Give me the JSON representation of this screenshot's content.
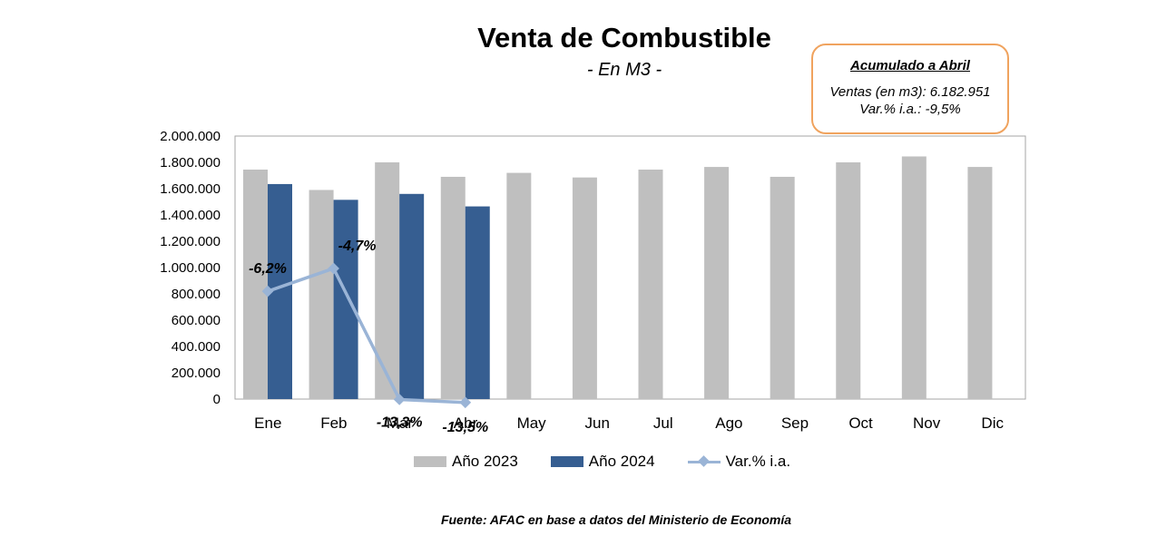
{
  "chart_data": {
    "type": "bar",
    "title": "Venta de Combustible",
    "subtitle": "- En M3 -",
    "categories": [
      "Ene",
      "Feb",
      "Mar",
      "Abr",
      "May",
      "Jun",
      "Jul",
      "Ago",
      "Sep",
      "Oct",
      "Nov",
      "Dic"
    ],
    "series": [
      {
        "name": "Año 2023",
        "type": "bar",
        "color": "#bfbfbf",
        "values": [
          1745000,
          1590000,
          1800000,
          1690000,
          1720000,
          1685000,
          1745000,
          1765000,
          1690000,
          1800000,
          1845000,
          1765000
        ]
      },
      {
        "name": "Año 2024",
        "type": "bar",
        "color": "#365e91",
        "values": [
          1635000,
          1515000,
          1560000,
          1465000,
          null,
          null,
          null,
          null,
          null,
          null,
          null,
          null
        ]
      },
      {
        "name": "Var.% i.a.",
        "type": "line",
        "color": "#9ab4d6",
        "values": [
          -6.2,
          -4.7,
          -13.3,
          -13.5,
          null,
          null,
          null,
          null,
          null,
          null,
          null,
          null
        ],
        "labels": [
          "-6,2%",
          "-4,7%",
          "-13,3%",
          "-13,5%",
          "",
          "",
          "",
          "",
          "",
          "",
          "",
          ""
        ]
      }
    ],
    "ylim": [
      0,
      2000000
    ],
    "yticks": [
      "0",
      "200.000",
      "400.000",
      "600.000",
      "800.000",
      "1.000.000",
      "1.200.000",
      "1.400.000",
      "1.600.000",
      "1.800.000",
      "2.000.000"
    ],
    "grid": false,
    "legend": "bottom"
  },
  "note": {
    "title": "Acumulado a Abril",
    "line1": "Ventas (en m3):  6.182.951",
    "line2": "Var.% i.a.: -9,5%"
  },
  "source": "Fuente: AFAC en base a datos del Ministerio de Economía"
}
